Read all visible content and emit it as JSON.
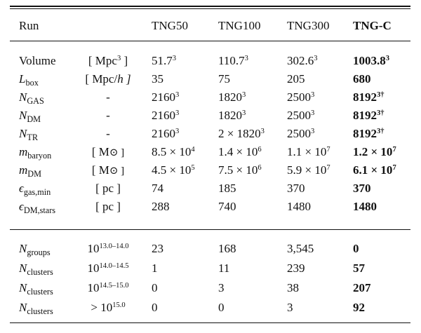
{
  "header": [
    "Run",
    "",
    "TNG50",
    "TNG100",
    "TNG300",
    "TNG-C"
  ],
  "section1": [
    {
      "sym": "Volume",
      "sub": "",
      "unit_pre": "[ Mpc",
      "unit_sup": "3",
      "unit_post": " ]",
      "v1b": "51.7",
      "v1s": "3",
      "v2b": "110.7",
      "v2s": "3",
      "v3b": "302.6",
      "v3s": "3",
      "v4b": "1003.8",
      "v4s": "3"
    },
    {
      "sym": "L",
      "sub": "box",
      "unit_pre": "[ Mpc/",
      "unit_sup": "",
      "unit_post": "h ]",
      "v1b": "35",
      "v1s": "",
      "v2b": "75",
      "v2s": "",
      "v3b": "205",
      "v3s": "",
      "v4b": "680",
      "v4s": ""
    },
    {
      "sym": "N",
      "sub": "GAS",
      "unit_pre": "-",
      "unit_sup": "",
      "unit_post": "",
      "v1b": "2160",
      "v1s": "3",
      "v2b": "1820",
      "v2s": "3",
      "v3b": "2500",
      "v3s": "3",
      "v4b": "8192",
      "v4s": "3†"
    },
    {
      "sym": "N",
      "sub": "DM",
      "unit_pre": "-",
      "unit_sup": "",
      "unit_post": "",
      "v1b": "2160",
      "v1s": "3",
      "v2b": "1820",
      "v2s": "3",
      "v3b": "2500",
      "v3s": "3",
      "v4b": "8192",
      "v4s": "3†"
    },
    {
      "sym": "N",
      "sub": "TR",
      "unit_pre": "-",
      "unit_sup": "",
      "unit_post": "",
      "v1b": "2160",
      "v1s": "3",
      "v2b": "2 × 1820",
      "v2s": "3",
      "v3b": "2500",
      "v3s": "3",
      "v4b": "8192",
      "v4s": "3†"
    },
    {
      "sym": "m",
      "sub": "baryon",
      "unit_pre": "[ M",
      "unit_sup": "",
      "unit_post": "⊙ ]",
      "v1b": "8.5 × 10",
      "v1s": "4",
      "v2b": "1.4 × 10",
      "v2s": "6",
      "v3b": "1.1 × 10",
      "v3s": "7",
      "v4b": "1.2 × 10",
      "v4s": "7"
    },
    {
      "sym": "m",
      "sub": "DM",
      "unit_pre": "[ M",
      "unit_sup": "",
      "unit_post": "⊙ ]",
      "v1b": "4.5 × 10",
      "v1s": "5",
      "v2b": "7.5 × 10",
      "v2s": "6",
      "v3b": "5.9 × 10",
      "v3s": "7",
      "v4b": "6.1 × 10",
      "v4s": "7"
    },
    {
      "sym": "ϵ",
      "sub": "gas,min",
      "unit_pre": "[ pc ]",
      "unit_sup": "",
      "unit_post": "",
      "v1b": "74",
      "v1s": "",
      "v2b": "185",
      "v2s": "",
      "v3b": "370",
      "v3s": "",
      "v4b": "370",
      "v4s": ""
    },
    {
      "sym": "ϵ",
      "sub": "DM,stars",
      "unit_pre": "[ pc ]",
      "unit_sup": "",
      "unit_post": "",
      "v1b": "288",
      "v1s": "",
      "v2b": "740",
      "v2s": "",
      "v3b": "1480",
      "v3s": "",
      "v4b": "1480",
      "v4s": ""
    }
  ],
  "section2": [
    {
      "sym": "N",
      "sub": "groups",
      "m_pre": "10",
      "m_sup": "13.0–14.0",
      "v1": "23",
      "v2": "168",
      "v3": "3,545",
      "v4": "0"
    },
    {
      "sym": "N",
      "sub": "clusters",
      "m_pre": "10",
      "m_sup": "14.0–14.5",
      "v1": "1",
      "v2": "11",
      "v3": "239",
      "v4": "57"
    },
    {
      "sym": "N",
      "sub": "clusters",
      "m_pre": "10",
      "m_sup": "14.5–15.0",
      "v1": "0",
      "v2": "3",
      "v3": "38",
      "v4": "207"
    },
    {
      "sym": "N",
      "sub": "clusters",
      "m_pre": "> 10",
      "m_sup": "15.0",
      "v1": "0",
      "v2": "0",
      "v3": "3",
      "v4": "92"
    }
  ]
}
